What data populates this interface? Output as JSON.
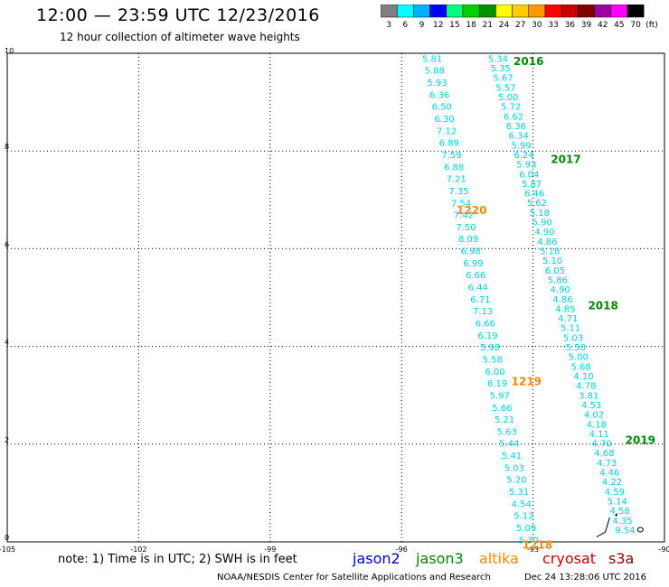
{
  "header": {
    "title": "12:00 — 23:59 UTC 12/23/2016",
    "subtitle": "12 hour collection of altimeter wave heights"
  },
  "colorbar": {
    "labels": [
      "3",
      "6",
      "9",
      "12",
      "15",
      "18",
      "21",
      "24",
      "27",
      "30",
      "33",
      "36",
      "39",
      "42",
      "45",
      "70"
    ],
    "unit": "(ft)",
    "colors": [
      "#808080",
      "#00ffff",
      "#00b0ff",
      "#0000ff",
      "#00ff80",
      "#00d000",
      "#009000",
      "#ffff00",
      "#ffcc00",
      "#ff9900",
      "#ff0000",
      "#c80000",
      "#800000",
      "#a000a0",
      "#ff00ff",
      "#000000"
    ]
  },
  "footer": {
    "note": "note: 1) Time is in UTC; 2) SWH is in feet",
    "satellites": [
      {
        "name": "jason2",
        "color": "#0000cc"
      },
      {
        "name": "jason3",
        "color": "#008800"
      },
      {
        "name": "altika",
        "color": "#ff8800"
      },
      {
        "name": "cryosat",
        "color": "#cc0000"
      },
      {
        "name": "s3a",
        "color": "#880000"
      }
    ],
    "credit": "NOAA/NESDIS Center for Satellite Applications and Research",
    "timestamp": "Dec 24 13:28:06 UTC 2016"
  },
  "chart_data": {
    "type": "scatter",
    "xlim": [
      -105,
      -90
    ],
    "ylim": [
      0,
      10
    ],
    "grid": true,
    "x_ticks": [
      "-105",
      "-102",
      "-99",
      "-96",
      "-93",
      "-90"
    ],
    "y_ticks": [
      "0",
      "2",
      "4",
      "6",
      "8",
      "10"
    ],
    "value_color": "#00d0e0",
    "series": [
      {
        "track_start": [
          -95.3,
          9.9
        ],
        "track_end": [
          -93.1,
          0.05
        ],
        "values": [
          "5.81",
          "5.88",
          "5.93",
          "6.36",
          "6.50",
          "6.30",
          "7.12",
          "6.89",
          "7.59",
          "6.88",
          "7.21",
          "7.35",
          "7.54",
          "7.42",
          "7.50",
          "8.09",
          "6.98",
          "6.99",
          "6.66",
          "6.44",
          "6.71",
          "7.13",
          "6.66",
          "6.19",
          "5.98",
          "5.58",
          "6.00",
          "6.19",
          "5.97",
          "5.66",
          "5.21",
          "5.63",
          "5.44",
          "5.41",
          "5.03",
          "5.20",
          "5.31",
          "4.54",
          "5.12",
          "5.09",
          "5.30"
        ]
      },
      {
        "track_start": [
          -93.8,
          9.9
        ],
        "track_end": [
          -90.9,
          0.25
        ],
        "values": [
          "5.34",
          "5.35",
          "5.67",
          "5.57",
          "5.00",
          "5.72",
          "6.62",
          "6.36",
          "6.34",
          "5.99",
          "6.24",
          "5.93",
          "6.04",
          "5.87",
          "6.46",
          "5.62",
          "5.18",
          "5.90",
          "4.90",
          "4.86",
          "5.18",
          "5.10",
          "6.05",
          "5.86",
          "4.90",
          "4.86",
          "4.85",
          "4.71",
          "5.11",
          "5.03",
          "5.50",
          "5.00",
          "5.68",
          "4.10",
          "4.78",
          "3.81",
          "4.53",
          "4.02",
          "4.18",
          "4.11",
          "4.70",
          "4.68",
          "4.73",
          "4.46",
          "4.22",
          "4.59",
          "5.14",
          "4.58",
          "4.35",
          "9.54"
        ]
      }
    ],
    "time_labels": [
      {
        "text": "2016",
        "lon": -93.1,
        "lat": 9.85,
        "color": "#008800"
      },
      {
        "text": "2017",
        "lon": -92.25,
        "lat": 7.85,
        "color": "#008800"
      },
      {
        "text": "1220",
        "lon": -94.4,
        "lat": 6.8,
        "color": "#ff8800"
      },
      {
        "text": "2018",
        "lon": -91.4,
        "lat": 4.85,
        "color": "#008800"
      },
      {
        "text": "1219",
        "lon": -93.15,
        "lat": 3.3,
        "color": "#ff8800"
      },
      {
        "text": "2019",
        "lon": -90.55,
        "lat": 2.1,
        "color": "#008800"
      },
      {
        "text": "1218",
        "lon": -92.9,
        "lat": -0.05,
        "color": "#ff8800"
      }
    ]
  }
}
